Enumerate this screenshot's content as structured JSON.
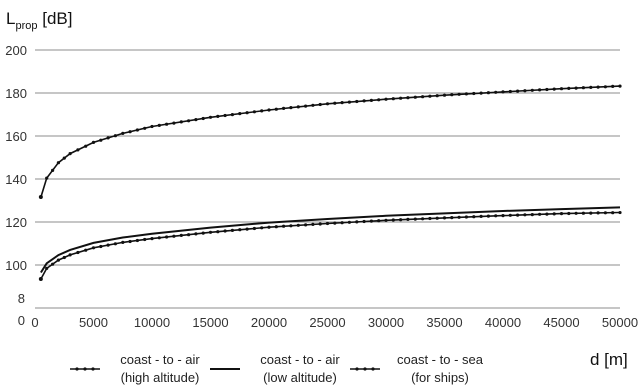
{
  "chart_data": {
    "type": "line",
    "ylabel": {
      "main": "L",
      "sub": "prop",
      "unit": " [dB]"
    },
    "xlabel": "d [m]",
    "xlim": [
      0,
      50000
    ],
    "ylim": [
      0,
      200
    ],
    "x_ticks": [
      0,
      5000,
      10000,
      15000,
      20000,
      25000,
      30000,
      35000,
      40000,
      45000,
      50000
    ],
    "y_ticks": [
      100,
      120,
      140,
      160,
      180,
      200
    ],
    "y_extra_labels": [
      "8",
      "0"
    ],
    "grid": "horizontal",
    "legend_position": "bottom",
    "x": [
      500,
      1000,
      2000,
      3000,
      5000,
      7500,
      10000,
      15000,
      20000,
      25000,
      30000,
      35000,
      40000,
      45000,
      50000
    ],
    "series": [
      {
        "label": [
          "coast - to - air",
          "(high altitude)"
        ],
        "style": "dotted-line",
        "values": [
          131.6,
          140.4,
          147.6,
          151.8,
          157.0,
          161.2,
          164.4,
          168.7,
          172.1,
          175.0,
          177.1,
          179.0,
          180.5,
          182.0,
          183.2
        ]
      },
      {
        "label": [
          "coast - to - air",
          "(low altitude)"
        ],
        "style": "solid",
        "values": [
          96.5,
          100.8,
          104.6,
          107.0,
          110.3,
          112.8,
          114.5,
          117.4,
          119.7,
          121.4,
          122.9,
          124.0,
          125.1,
          126.0,
          126.8
        ]
      },
      {
        "label": [
          "coast - to - sea",
          "(for ships)"
        ],
        "style": "dotted-line",
        "values": [
          93.5,
          98.4,
          102.3,
          104.7,
          108.0,
          110.5,
          112.3,
          115.2,
          117.6,
          119.3,
          120.8,
          121.9,
          123.0,
          123.9,
          124.4
        ]
      }
    ]
  }
}
